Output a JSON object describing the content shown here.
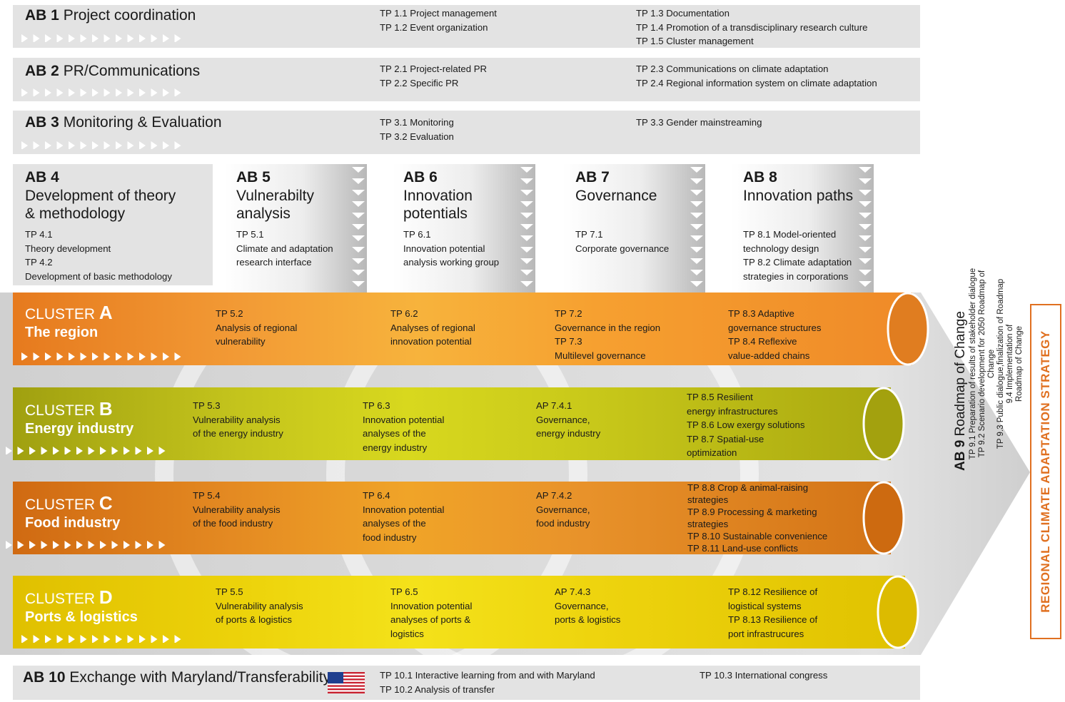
{
  "rows": [
    {
      "code": "AB 1",
      "title": "Project coordination",
      "left": "TP 1.1 Project management\nTP 1.2 Event organization",
      "right": "TP 1.3 Documentation\nTP 1.4 Promotion of a transdisciplinary research culture\nTP 1.5 Cluster management"
    },
    {
      "code": "AB 2",
      "title": "PR/Communications",
      "left": "TP 2.1 Project-related PR\nTP 2.2 Specific PR",
      "right": "TP 2.3 Communications on climate adaptation\nTP 2.4 Regional information system on climate adaptation"
    },
    {
      "code": "AB 3",
      "title": "Monitoring & Evaluation",
      "left": "TP 3.1 Monitoring\nTP 3.2 Evaluation",
      "right": "TP 3.3 Gender mainstreaming"
    }
  ],
  "ab4": {
    "code": "AB 4",
    "title": "Development of theory\n& methodology",
    "tps": "TP 4.1\nTheory development\nTP 4.2\nDevelopment of basic methodology"
  },
  "columns": [
    {
      "code": "AB 5",
      "title": "Vulnerabilty\nanalysis",
      "tps": "TP 5.1\nClimate and adaptation\nresearch interface"
    },
    {
      "code": "AB 6",
      "title": "Innovation\npotentials",
      "tps": "TP 6.1\nInnovation potential\nanalysis working group"
    },
    {
      "code": "AB 7",
      "title": "Governance",
      "tps": "TP 7.1\nCorporate governance"
    },
    {
      "code": "AB 8",
      "title": "Innovation paths",
      "tps": "TP 8.1 Model-oriented\ntechnology design\nTP 8.2 Climate adaptation\nstrategies in corporations"
    }
  ],
  "clusters": [
    {
      "word": "CLUSTER",
      "letter": "A",
      "name": "The region",
      "color": "#ee8a2a",
      "cells": [
        "TP 5.2\nAnalysis of regional\nvulnerability",
        "TP 6.2\nAnalyses of regional\ninnovation potential",
        "TP 7.2\nGovernance in the region\nTP 7.3\nMultilevel governance",
        "TP 8.3 Adaptive\ngovernance structures\nTP 8.4 Reflexive\nvalue-added chains"
      ]
    },
    {
      "word": "CLUSTER",
      "letter": "B",
      "name": "Energy industry",
      "color": "#a8a812",
      "cells": [
        "TP 5.3\nVulnerability analysis\nof the energy industry",
        "TP 6.3\nInnovation potential\nanalyses of the\nenergy industry",
        "AP 7.4.1\nGovernance,\nenergy industry",
        "TP 8.5 Resilient\nenergy infrastructures\nTP 8.6 Low exergy solutions\nTP 8.7 Spatial-use\noptimization"
      ]
    },
    {
      "word": "CLUSTER",
      "letter": "C",
      "name": "Food industry",
      "color": "#d8761a",
      "cells": [
        "TP 5.4\nVulnerability analysis\nof the food industry",
        "TP 6.4\nInnovation potential\nanalyses of the\nfood industry",
        "AP 7.4.2\nGovernance,\nfood industry",
        "TP 8.8 Crop & animal-raising\nstrategies\nTP 8.9 Processing & marketing\nstrategies\nTP 8.10 Sustainable convenience\nTP 8.11 Land-use conflicts"
      ]
    },
    {
      "word": "CLUSTER",
      "letter": "D",
      "name": "Ports & logistics",
      "color": "#e3c500",
      "cells": [
        "TP 5.5\nVulnerability analysis\nof ports & logistics",
        "TP 6.5\nInnovation potential\nanalyses of ports &\nlogistics",
        "AP 7.4.3\nGovernance,\nports & logistics",
        "TP 8.12 Resilience of\nlogistical systems\nTP 8.13 Resilience of\nport infrastrucures"
      ]
    }
  ],
  "ab9": {
    "code": "AB 9",
    "title": "Roadmap of Change",
    "items": "TP 9.1 Preparation of results of stakeholder dialogue\nTP 9.2  Scenario development for 2050 Roadmap of Change\nTP 9.3 Public dialogue,finalization of Roadmap\n9.4 Implementation of\nRoadmap of Change"
  },
  "ab10": {
    "code": "AB 10",
    "title": "Exchange with Maryland/Transferability",
    "left": "TP 10.1 Interactive learning from and with Maryland\nTP 10.2 Analysis of transfer",
    "right": "TP 10.3 International congress",
    "flag": "us-flag-icon"
  },
  "strategy": "REGIONAL CLIMATE ADAPTATION STRATEGY",
  "colors": {
    "band": "#e3e3e3",
    "accent": "#e07020",
    "chevron": "#ffffff"
  }
}
